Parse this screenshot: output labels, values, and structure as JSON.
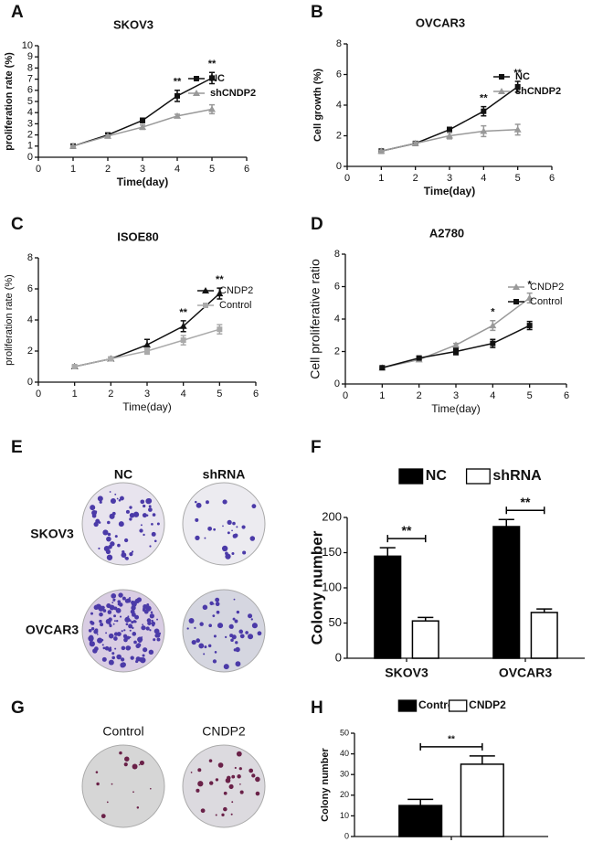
{
  "panels": [
    "A",
    "B",
    "C",
    "D",
    "E",
    "F",
    "G",
    "H"
  ],
  "plates": {
    "E": {
      "columns": [
        "NC",
        "shRNA"
      ],
      "rows": [
        "SKOV3",
        "OVCAR3"
      ]
    },
    "G": {
      "columns": [
        "Control",
        "CNDP2"
      ]
    }
  },
  "chart_data": [
    {
      "type": "line",
      "title": "SKOV3",
      "x_label": "Time(day)",
      "y_label": "proliferation rate (%)",
      "x": [
        1,
        2,
        3,
        4,
        5
      ],
      "xlim": [
        0,
        6
      ],
      "xticks": [
        0,
        1,
        2,
        3,
        4,
        5,
        6
      ],
      "ylim": [
        0,
        10
      ],
      "yticks": [
        0,
        1,
        2,
        3,
        4,
        5,
        6,
        7,
        8,
        9,
        10
      ],
      "legend": "top right",
      "series": [
        {
          "name": "NC",
          "color": "#111111",
          "marker": "square",
          "values": [
            1,
            2,
            3.3,
            5.5,
            7.1
          ],
          "errors": [
            0.05,
            0.1,
            0.2,
            0.5,
            0.5
          ]
        },
        {
          "name": "shCNDP2",
          "color": "#999999",
          "marker": "triangle",
          "values": [
            1,
            1.9,
            2.7,
            3.7,
            4.3
          ],
          "errors": [
            0.05,
            0.1,
            0.2,
            0.15,
            0.4
          ]
        }
      ],
      "annotations": [
        {
          "text": "**",
          "x": 4
        },
        {
          "text": "**",
          "x": 5
        }
      ]
    },
    {
      "type": "line",
      "title": "OVCAR3",
      "x_label": "Time(day)",
      "y_label": "Cell growth (%)",
      "x": [
        1,
        2,
        3,
        4,
        5
      ],
      "xlim": [
        0,
        6
      ],
      "xticks": [
        0,
        1,
        2,
        3,
        4,
        5,
        6
      ],
      "ylim": [
        0,
        8
      ],
      "yticks": [
        0,
        2,
        4,
        6,
        8
      ],
      "legend": "top right",
      "series": [
        {
          "name": "NC",
          "color": "#111111",
          "marker": "square",
          "values": [
            1,
            1.5,
            2.4,
            3.6,
            5.2
          ],
          "errors": [
            0.05,
            0.1,
            0.15,
            0.3,
            0.35
          ]
        },
        {
          "name": "shCNDP2",
          "color": "#999999",
          "marker": "triangle",
          "values": [
            1,
            1.5,
            2.0,
            2.3,
            2.4
          ],
          "errors": [
            0.05,
            0.1,
            0.2,
            0.35,
            0.35
          ]
        }
      ],
      "annotations": [
        {
          "text": "**",
          "x": 4
        },
        {
          "text": "**",
          "x": 5
        }
      ]
    },
    {
      "type": "line",
      "title": "ISOE80",
      "x_label": "Time(day)",
      "y_label": "proliferation rate (%)",
      "x": [
        1,
        2,
        3,
        4,
        5
      ],
      "xlim": [
        0,
        6
      ],
      "xticks": [
        0,
        1,
        2,
        3,
        4,
        5,
        6
      ],
      "ylim": [
        0,
        8
      ],
      "yticks": [
        0,
        2,
        4,
        6,
        8
      ],
      "legend": "top right",
      "series": [
        {
          "name": "CNDP2",
          "color": "#111111",
          "marker": "triangle",
          "values": [
            1,
            1.5,
            2.4,
            3.6,
            5.7
          ],
          "errors": [
            0.05,
            0.1,
            0.35,
            0.35,
            0.35
          ]
        },
        {
          "name": "Control",
          "color": "#aaaaaa",
          "marker": "square",
          "values": [
            1,
            1.5,
            2.0,
            2.7,
            3.4
          ],
          "errors": [
            0.05,
            0.1,
            0.2,
            0.3,
            0.3
          ]
        }
      ],
      "annotations": [
        {
          "text": "**",
          "x": 4
        },
        {
          "text": "**",
          "x": 5
        }
      ]
    },
    {
      "type": "line",
      "title": "A2780",
      "x_label": "Time(day)",
      "y_label": "Cell proliferative ratio",
      "x": [
        1,
        2,
        3,
        4,
        5
      ],
      "xlim": [
        0,
        6
      ],
      "xticks": [
        0,
        1,
        2,
        3,
        4,
        5,
        6
      ],
      "ylim": [
        0,
        8
      ],
      "yticks": [
        0,
        2,
        4,
        6,
        8
      ],
      "legend": "top right",
      "series": [
        {
          "name": "CNDP2",
          "color": "#999999",
          "marker": "triangle",
          "values": [
            1,
            1.5,
            2.4,
            3.6,
            5.3
          ],
          "errors": [
            0.05,
            0.1,
            0.1,
            0.3,
            0.3
          ]
        },
        {
          "name": "Control",
          "color": "#111111",
          "marker": "square",
          "values": [
            1,
            1.6,
            2.0,
            2.5,
            3.6
          ],
          "errors": [
            0.05,
            0.1,
            0.2,
            0.25,
            0.25
          ]
        }
      ],
      "annotations": [
        {
          "text": "*",
          "x": 4
        },
        {
          "text": "*",
          "x": 5
        }
      ]
    },
    {
      "type": "bar",
      "y_label": "Colony number",
      "categories": [
        "SKOV3",
        "OVCAR3"
      ],
      "ylim": [
        0,
        200
      ],
      "yticks": [
        0,
        50,
        100,
        150,
        200
      ],
      "legend": "top",
      "series": [
        {
          "name": "NC",
          "color": "#000000",
          "values": [
            145,
            187
          ],
          "errors": [
            12,
            10
          ]
        },
        {
          "name": "shRNA",
          "color": "#ffffff",
          "values": [
            53,
            65
          ],
          "errors": [
            5,
            5
          ]
        }
      ],
      "annotations": [
        {
          "text": "**",
          "category": 0
        },
        {
          "text": "**",
          "category": 1
        }
      ]
    },
    {
      "type": "bar",
      "y_label": "Colony number",
      "categories": [
        null
      ],
      "ylim": [
        0,
        50
      ],
      "yticks": [
        0,
        10,
        20,
        30,
        40,
        50
      ],
      "legend": "top",
      "series": [
        {
          "name": "Control",
          "color": "#000000",
          "values": [
            15
          ],
          "errors": [
            3
          ]
        },
        {
          "name": "CNDP2",
          "color": "#ffffff",
          "values": [
            35
          ],
          "errors": [
            4
          ]
        }
      ],
      "annotations": [
        {
          "text": "**",
          "category": 0
        }
      ]
    }
  ]
}
